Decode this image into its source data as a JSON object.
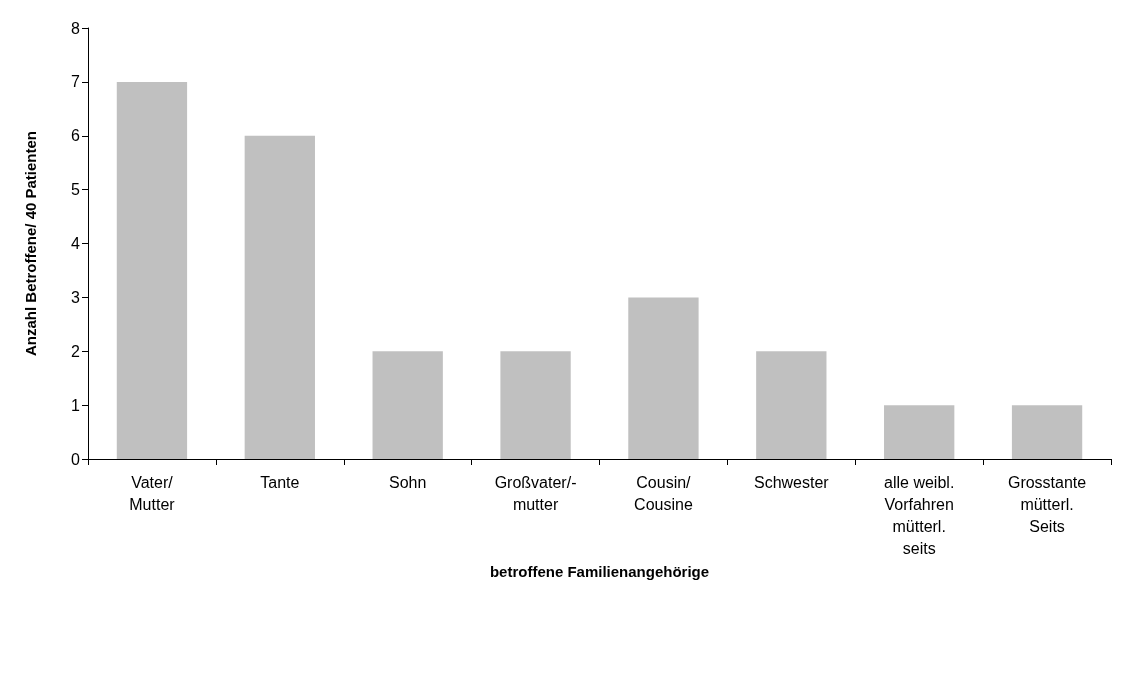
{
  "chart_data": {
    "type": "bar",
    "xlabel": "betroffene Familienangehörige",
    "ylabel": "Anzahl Betroffene/ 40 Patienten",
    "categories": [
      "Vater/\nMutter",
      "Tante",
      "Sohn",
      "Großvater/-\nmutter",
      "Cousin/\nCousine",
      "Schwester",
      "alle weibl.\nVorfahren\nmütterl.\nseits",
      "Grosstante\nmütterl.\nSeits"
    ],
    "values": [
      7,
      6,
      2,
      2,
      3,
      2,
      1,
      1
    ],
    "color": "#c0c0c0",
    "ylim": [
      0,
      8
    ],
    "yticks": [
      0,
      1,
      2,
      3,
      4,
      5,
      6,
      7,
      8
    ]
  }
}
